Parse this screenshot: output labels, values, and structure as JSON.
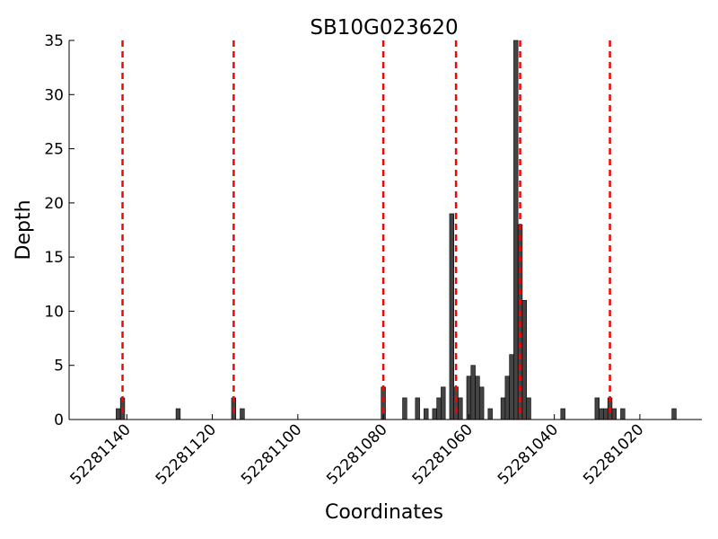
{
  "chart_data": {
    "type": "bar",
    "title": "SB10G023620",
    "xlabel": "Coordinates",
    "ylabel": "Depth",
    "x_reversed": true,
    "xlim": [
      52281153.5,
      52281005.5
    ],
    "ylim": [
      0,
      35
    ],
    "xticks": [
      52281140,
      52281120,
      52281100,
      52281080,
      52281060,
      52281040,
      52281020
    ],
    "xtick_labels": [
      "52281140",
      "52281120",
      "52281100",
      "52281080",
      "52281060",
      "52281040",
      "52281020"
    ],
    "yticks": [
      0,
      5,
      10,
      15,
      20,
      25,
      30,
      35
    ],
    "ytick_labels": [
      "0",
      "5",
      "10",
      "15",
      "20",
      "25",
      "30",
      "35"
    ],
    "bars": [
      {
        "x": 52281142,
        "depth": 1
      },
      {
        "x": 52281141,
        "depth": 2
      },
      {
        "x": 52281128,
        "depth": 1
      },
      {
        "x": 52281115,
        "depth": 2
      },
      {
        "x": 52281113,
        "depth": 1
      },
      {
        "x": 52281080,
        "depth": 3
      },
      {
        "x": 52281075,
        "depth": 2
      },
      {
        "x": 52281072,
        "depth": 2
      },
      {
        "x": 52281070,
        "depth": 1
      },
      {
        "x": 52281068,
        "depth": 1
      },
      {
        "x": 52281067,
        "depth": 2
      },
      {
        "x": 52281066,
        "depth": 3
      },
      {
        "x": 52281064,
        "depth": 19
      },
      {
        "x": 52281063,
        "depth": 3
      },
      {
        "x": 52281062,
        "depth": 2
      },
      {
        "x": 52281060,
        "depth": 4
      },
      {
        "x": 52281059,
        "depth": 5
      },
      {
        "x": 52281058,
        "depth": 4
      },
      {
        "x": 52281057,
        "depth": 3
      },
      {
        "x": 52281055,
        "depth": 1
      },
      {
        "x": 52281052,
        "depth": 2
      },
      {
        "x": 52281051,
        "depth": 4
      },
      {
        "x": 52281050,
        "depth": 6
      },
      {
        "x": 52281049,
        "depth": 35
      },
      {
        "x": 52281048,
        "depth": 18
      },
      {
        "x": 52281047,
        "depth": 11
      },
      {
        "x": 52281046,
        "depth": 2
      },
      {
        "x": 52281038,
        "depth": 1
      },
      {
        "x": 52281030,
        "depth": 2
      },
      {
        "x": 52281029,
        "depth": 1
      },
      {
        "x": 52281028,
        "depth": 1
      },
      {
        "x": 52281027,
        "depth": 2
      },
      {
        "x": 52281026,
        "depth": 1
      },
      {
        "x": 52281024,
        "depth": 1
      },
      {
        "x": 52281012,
        "depth": 1
      }
    ],
    "marker_lines": [
      52281141,
      52281115,
      52281080,
      52281063,
      52281048,
      52281027
    ],
    "colors": {
      "bar_fill": "#444444",
      "bar_edge": "#000000",
      "marker_line": "#ff0000",
      "axis": "#000000"
    }
  }
}
